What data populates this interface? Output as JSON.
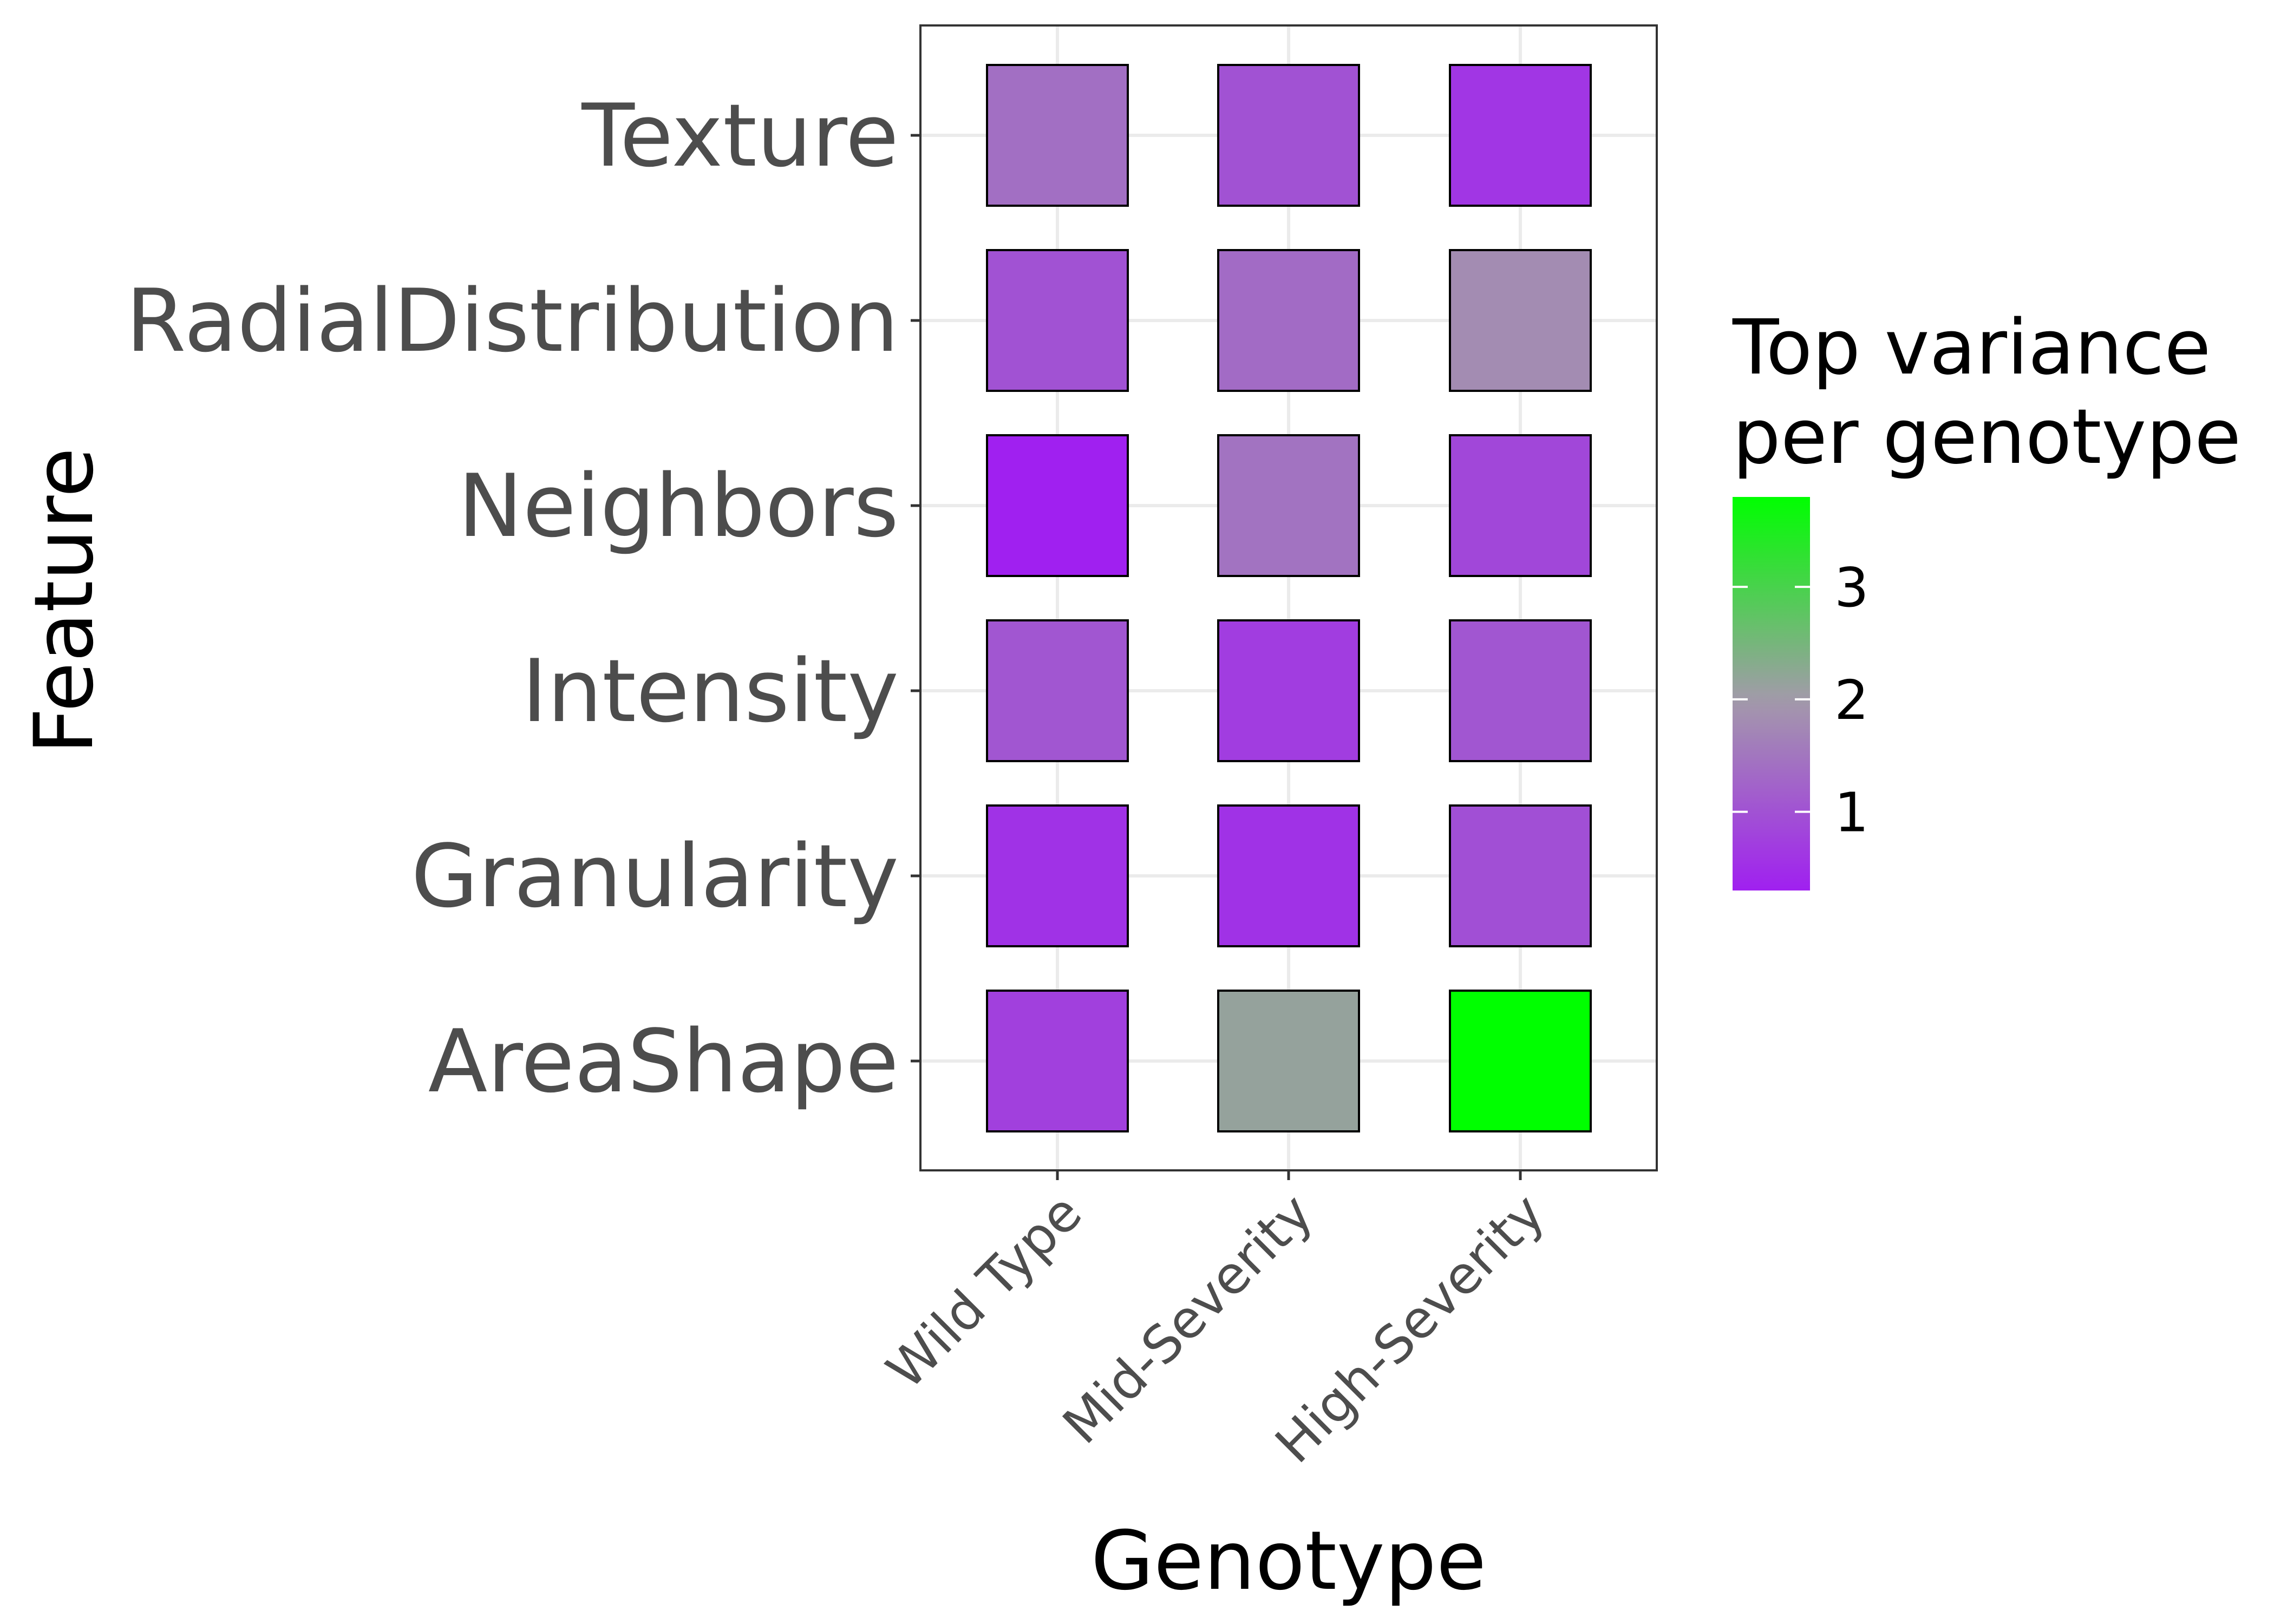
{
  "chart_data": {
    "type": "heatmap",
    "xlabel": "Genotype",
    "ylabel": "Feature",
    "x_categories": [
      "Wild Type",
      "Mid-Severity",
      "High-Severity"
    ],
    "y_categories": [
      "AreaShape",
      "Granularity",
      "Intensity",
      "Neighbors",
      "RadialDistribution",
      "Texture"
    ],
    "values": [
      [
        0.75,
        2.15,
        3.8
      ],
      [
        0.55,
        0.55,
        0.95
      ],
      [
        1.05,
        0.7,
        1.05
      ],
      [
        0.3,
        1.45,
        0.85
      ],
      [
        1.0,
        1.35,
        1.8
      ],
      [
        1.4,
        1.0,
        0.6
      ]
    ],
    "legend": {
      "title_lines": [
        "Top variance",
        "per genotype"
      ],
      "ticks": [
        1,
        2,
        3
      ],
      "tick_labels": [
        "1",
        "2",
        "3"
      ],
      "min": 0.3,
      "max": 3.8,
      "position": "right"
    },
    "colors": {
      "low": "#a020f0",
      "mid": "#a39aaa",
      "high": "#00ff00",
      "midpoint": 2.0
    },
    "grid": true
  }
}
